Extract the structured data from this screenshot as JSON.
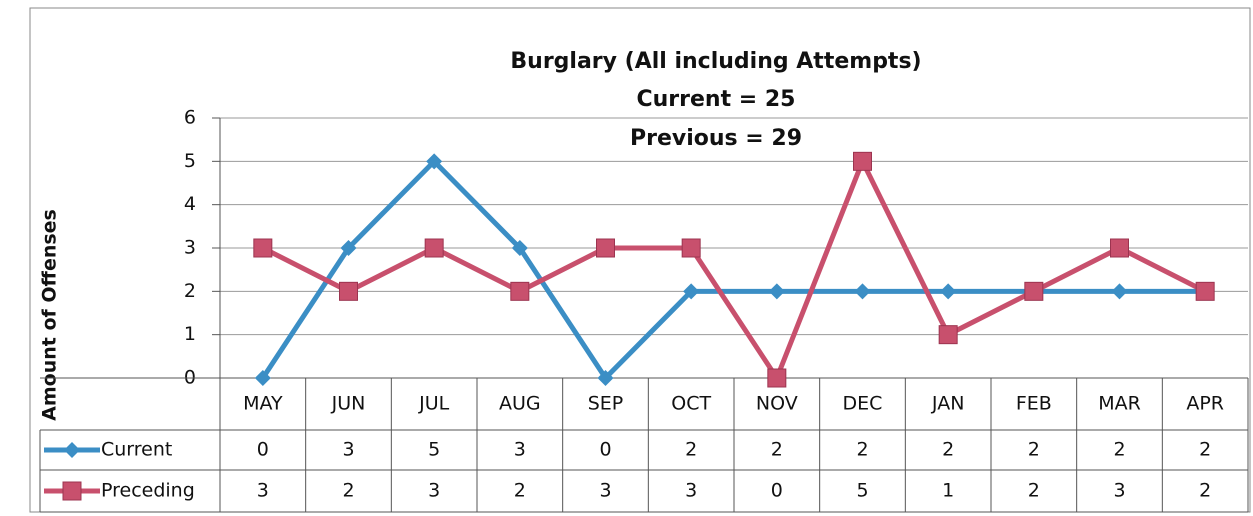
{
  "chart_data": {
    "type": "line",
    "title": "Burglary (All including Attempts)",
    "subtitle": [
      "Current = 25",
      "Previous = 29"
    ],
    "y_label": "Amount of Offenses",
    "categories": [
      "MAY",
      "JUN",
      "JUL",
      "AUG",
      "SEP",
      "OCT",
      "NOV",
      "DEC",
      "JAN",
      "FEB",
      "MAR",
      "APR"
    ],
    "series": [
      {
        "name": "Current",
        "color": "#3b8ec5",
        "marker": "diamond",
        "values": [
          0,
          3,
          5,
          3,
          0,
          2,
          2,
          2,
          2,
          2,
          2,
          2
        ]
      },
      {
        "name": "Preceding",
        "color": "#c8506d",
        "marker": "square",
        "values": [
          3,
          2,
          3,
          2,
          3,
          3,
          0,
          5,
          1,
          2,
          3,
          2
        ]
      }
    ],
    "ylim": [
      0,
      6
    ],
    "yticks": [
      0,
      1,
      2,
      3,
      4,
      5,
      6
    ],
    "grid": true,
    "data_table": true
  }
}
